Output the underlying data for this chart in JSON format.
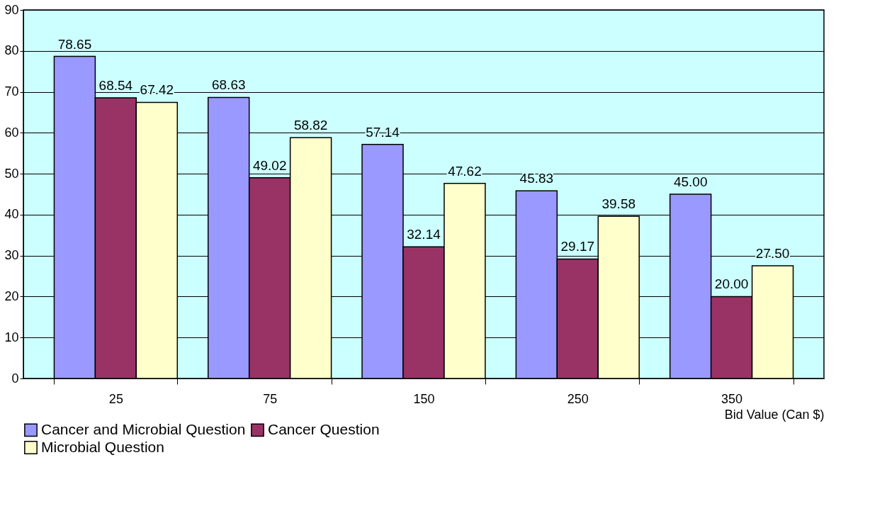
{
  "chart_data": {
    "type": "bar",
    "xlabel": "Bid Value (Can $)",
    "categories": [
      "25",
      "75",
      "150",
      "250",
      "350"
    ],
    "series": [
      {
        "name": "Cancer and Microbial Question",
        "color": "#9999ff",
        "values": [
          78.65,
          68.63,
          57.14,
          45.83,
          45.0
        ],
        "value_labels": [
          "78.65",
          "68.63",
          "57.14",
          "45.83",
          "45.00"
        ]
      },
      {
        "name": "Cancer Question",
        "color": "#993366",
        "values": [
          68.54,
          49.02,
          32.14,
          29.17,
          20.0
        ],
        "value_labels": [
          "68.54",
          "49.02",
          "32.14",
          "29.17",
          "20.00"
        ]
      },
      {
        "name": "Microbial Question",
        "color": "#ffffcc",
        "values": [
          67.42,
          58.82,
          47.62,
          39.58,
          27.5
        ],
        "value_labels": [
          "67.42",
          "58.82",
          "47.62",
          "39.58",
          "27.50"
        ]
      }
    ],
    "ylim": [
      0,
      90
    ],
    "yticks": [
      0,
      10,
      20,
      30,
      40,
      50,
      60,
      70,
      80,
      90
    ],
    "grid": "y",
    "legend": "bottom left"
  }
}
